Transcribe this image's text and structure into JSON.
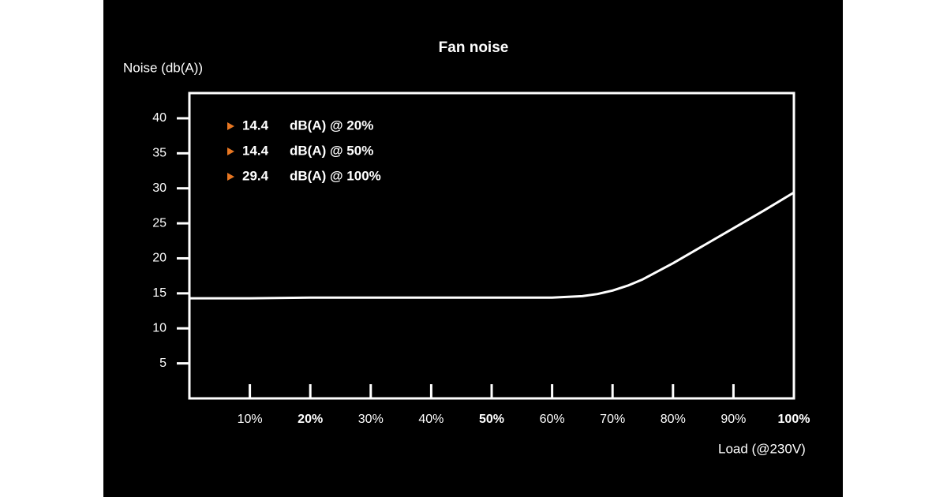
{
  "chart_data": {
    "type": "line",
    "title": "Fan noise",
    "y_label": "Noise (db(A))",
    "x_label": "Load (@230V)",
    "x": [
      0,
      10,
      20,
      30,
      40,
      50,
      60,
      65,
      67.5,
      70,
      72.5,
      75,
      80,
      85,
      90,
      95,
      100
    ],
    "series": [
      {
        "name": "Fan noise",
        "color": "#ffffff",
        "values": [
          14.3,
          14.3,
          14.4,
          14.4,
          14.4,
          14.4,
          14.4,
          14.6,
          14.9,
          15.4,
          16.1,
          17.0,
          19.3,
          21.8,
          24.3,
          26.8,
          29.4
        ]
      }
    ],
    "xlim": [
      0,
      100
    ],
    "ylim": [
      0,
      43.6
    ],
    "xticks": [
      {
        "value": 10,
        "label": "10%"
      },
      {
        "value": 20,
        "label": "20%",
        "bold": true
      },
      {
        "value": 30,
        "label": "30%"
      },
      {
        "value": 40,
        "label": "40%"
      },
      {
        "value": 50,
        "label": "50%",
        "bold": true
      },
      {
        "value": 60,
        "label": "60%"
      },
      {
        "value": 70,
        "label": "70%"
      },
      {
        "value": 80,
        "label": "80%"
      },
      {
        "value": 90,
        "label": "90%"
      },
      {
        "value": 100,
        "label": "100%",
        "bold": true
      }
    ],
    "yticks": [
      5,
      10,
      15,
      20,
      25,
      30,
      35,
      40
    ],
    "grid": true,
    "annotations": [
      {
        "value": 14.4,
        "text": "dB(A) @ 20%"
      },
      {
        "value": 14.4,
        "text": "dB(A) @ 50%"
      },
      {
        "value": 29.4,
        "text": "dB(A) @ 100%"
      }
    ],
    "marker_color": "#e87722"
  }
}
